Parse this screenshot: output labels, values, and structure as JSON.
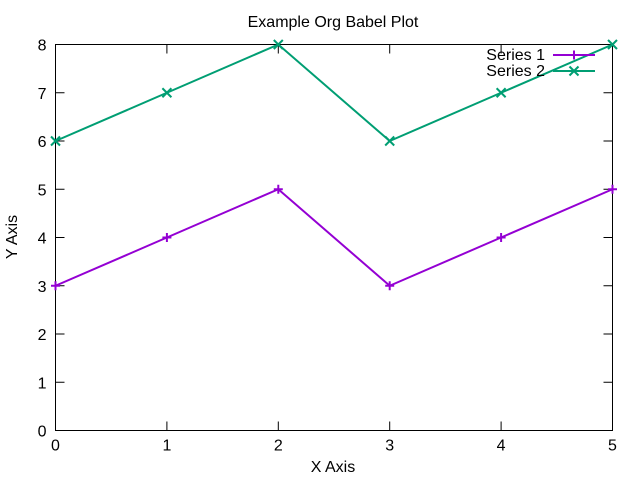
{
  "chart_data": {
    "type": "line",
    "title": "Example Org Babel Plot",
    "xlabel": "X Axis",
    "ylabel": "Y Axis",
    "x": [
      0,
      1,
      2,
      3,
      4,
      5
    ],
    "xlim": [
      0,
      5
    ],
    "ylim": [
      0,
      8
    ],
    "xticks": [
      "0",
      "1",
      "2",
      "3",
      "4",
      "5"
    ],
    "yticks": [
      "0",
      "1",
      "2",
      "3",
      "4",
      "5",
      "6",
      "7",
      "8"
    ],
    "grid": false,
    "legend_position": "top-right",
    "series": [
      {
        "name": "Series 1",
        "values": [
          3,
          4,
          5,
          3,
          4,
          5
        ],
        "color": "#9400d3",
        "marker": "plus"
      },
      {
        "name": "Series 2",
        "values": [
          6,
          7,
          8,
          6,
          7,
          8
        ],
        "color": "#009e73",
        "marker": "cross"
      }
    ]
  }
}
